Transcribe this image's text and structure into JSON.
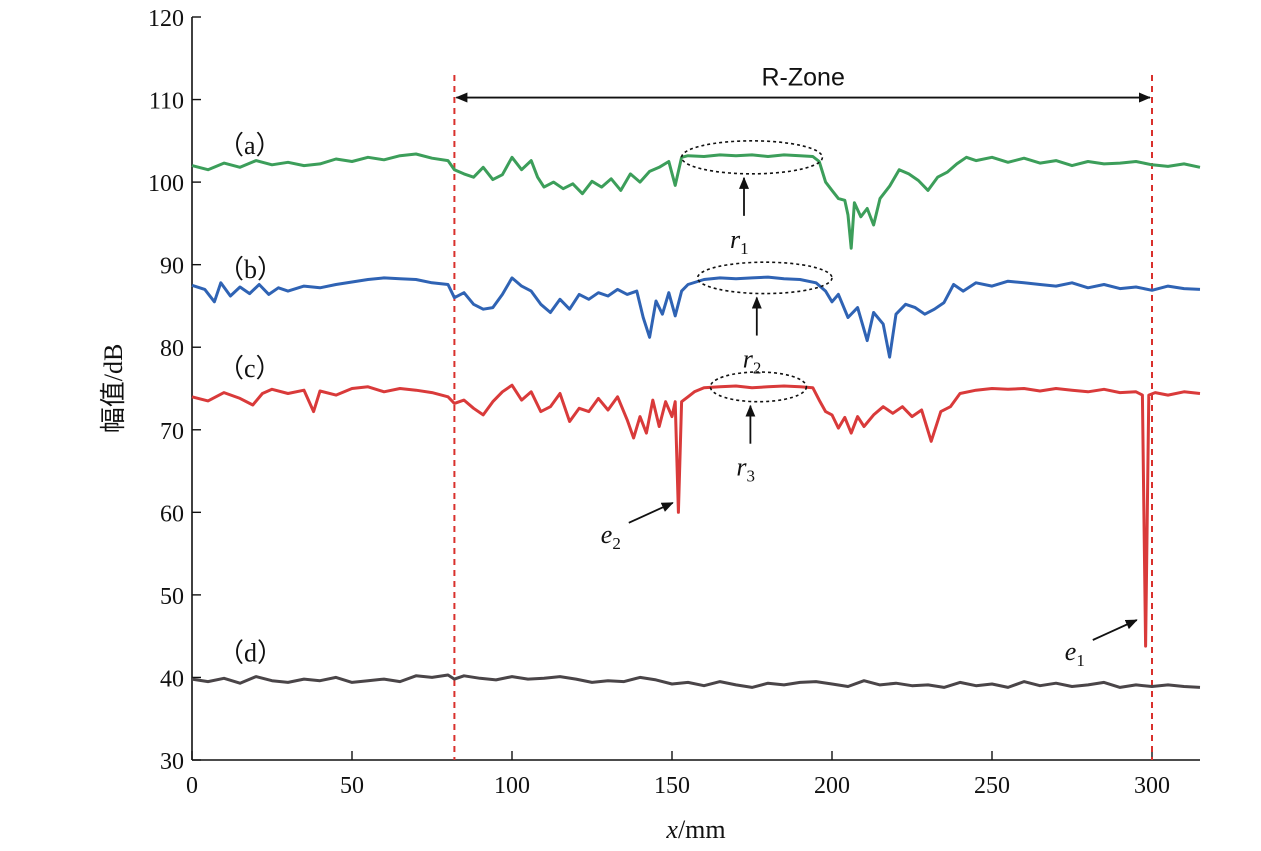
{
  "chart_data": {
    "type": "line",
    "title": "",
    "xlabel_var": "x",
    "xlabel_unit": "/mm",
    "ylabel": "幅值/dB",
    "xlim": [
      0,
      315
    ],
    "ylim": [
      30,
      120
    ],
    "xticks": [
      0,
      50,
      100,
      150,
      200,
      250,
      300
    ],
    "yticks": [
      30,
      40,
      50,
      60,
      70,
      80,
      90,
      100,
      110,
      120
    ],
    "grid": false,
    "series": [
      {
        "panel": "（a）",
        "color": "#3c9e5a",
        "x": [
          0,
          5,
          10,
          15,
          20,
          25,
          30,
          35,
          40,
          45,
          50,
          55,
          60,
          65,
          70,
          75,
          80,
          82,
          85,
          88,
          91,
          94,
          97,
          100,
          103,
          106,
          108,
          110,
          113,
          116,
          119,
          122,
          125,
          128,
          131,
          134,
          137,
          140,
          143,
          146,
          149,
          151,
          153,
          155,
          160,
          165,
          170,
          175,
          180,
          185,
          190,
          194,
          196,
          198,
          200,
          202,
          204,
          205,
          206,
          207,
          209,
          211,
          213,
          215,
          218,
          221,
          224,
          227,
          230,
          233,
          236,
          239,
          242,
          245,
          250,
          255,
          260,
          265,
          270,
          275,
          280,
          285,
          290,
          295,
          300,
          305,
          310,
          315
        ],
        "y": [
          102,
          101.5,
          102.3,
          101.8,
          102.6,
          102.1,
          102.4,
          102,
          102.2,
          102.8,
          102.5,
          103,
          102.7,
          103.2,
          103.4,
          102.9,
          102.6,
          101.5,
          101,
          100.6,
          101.8,
          100.3,
          100.9,
          103,
          101.5,
          102.6,
          100.6,
          99.4,
          100,
          99.2,
          99.8,
          98.6,
          100.1,
          99.4,
          100.4,
          99,
          101,
          100,
          101.3,
          101.8,
          102.5,
          99.6,
          103,
          103.2,
          103.1,
          103.3,
          103.2,
          103.3,
          103.1,
          103.3,
          103.2,
          103.1,
          102.5,
          100,
          99,
          98,
          97.8,
          96,
          92,
          97.5,
          95.8,
          96.8,
          94.8,
          98,
          99.5,
          101.5,
          101,
          100.2,
          99,
          100.6,
          101.2,
          102.2,
          103,
          102.6,
          103,
          102.4,
          102.9,
          102.3,
          102.6,
          102,
          102.5,
          102.2,
          102.3,
          102.5,
          102.1,
          101.9,
          102.2,
          101.8
        ]
      },
      {
        "panel": "（b）",
        "color": "#2f63b4",
        "x": [
          0,
          4,
          7,
          9,
          12,
          15,
          18,
          21,
          24,
          27,
          30,
          35,
          40,
          45,
          50,
          55,
          60,
          65,
          70,
          75,
          80,
          82,
          85,
          88,
          91,
          94,
          97,
          100,
          103,
          106,
          109,
          112,
          115,
          118,
          121,
          124,
          127,
          130,
          133,
          136,
          139,
          141,
          143,
          145,
          147,
          149,
          151,
          153,
          155,
          160,
          165,
          170,
          175,
          180,
          185,
          190,
          195,
          198,
          200,
          202,
          205,
          208,
          211,
          213,
          216,
          218,
          220,
          223,
          226,
          229,
          232,
          235,
          238,
          241,
          245,
          250,
          255,
          260,
          265,
          270,
          275,
          280,
          285,
          290,
          295,
          300,
          305,
          310,
          315
        ],
        "y": [
          87.5,
          87,
          85.5,
          87.8,
          86.2,
          87.3,
          86.5,
          87.6,
          86.4,
          87.2,
          86.8,
          87.4,
          87.2,
          87.6,
          87.9,
          88.2,
          88.4,
          88.3,
          88.2,
          87.8,
          87.6,
          86,
          86.6,
          85.2,
          84.6,
          84.8,
          86.4,
          88.4,
          87.4,
          86.8,
          85.2,
          84.2,
          85.8,
          84.6,
          86.4,
          85.8,
          86.6,
          86.2,
          87,
          86.4,
          86.8,
          83.6,
          81.2,
          85.6,
          84,
          86.6,
          83.8,
          86.8,
          87.6,
          88.2,
          88.4,
          88.3,
          88.4,
          88.5,
          88.3,
          88.2,
          87.8,
          86.8,
          85.5,
          86.4,
          83.6,
          84.8,
          80.8,
          84.2,
          82.8,
          78.8,
          84,
          85.2,
          84.8,
          84,
          84.6,
          85.4,
          87.6,
          86.8,
          87.8,
          87.4,
          88,
          87.8,
          87.6,
          87.4,
          87.8,
          87.2,
          87.6,
          87.1,
          87.3,
          86.9,
          87.4,
          87.1,
          87
        ]
      },
      {
        "panel": "（c）",
        "color": "#d93a3a",
        "x": [
          0,
          5,
          10,
          15,
          19,
          22,
          25,
          30,
          35,
          38,
          40,
          45,
          50,
          55,
          60,
          65,
          70,
          75,
          80,
          82,
          85,
          88,
          91,
          94,
          97,
          100,
          103,
          106,
          109,
          112,
          115,
          118,
          121,
          124,
          127,
          130,
          133,
          136,
          138,
          140,
          142,
          144,
          146,
          148,
          150,
          151,
          152,
          153,
          155,
          157,
          160,
          165,
          170,
          175,
          180,
          185,
          190,
          194,
          196,
          198,
          200,
          202,
          204,
          206,
          208,
          210,
          213,
          216,
          219,
          222,
          225,
          228,
          231,
          234,
          237,
          240,
          245,
          250,
          255,
          260,
          265,
          270,
          275,
          280,
          285,
          290,
          295,
          297,
          298,
          299,
          301,
          305,
          310,
          315
        ],
        "y": [
          74,
          73.5,
          74.5,
          73.8,
          73,
          74.4,
          74.9,
          74.4,
          74.8,
          72.2,
          74.7,
          74.2,
          75,
          75.2,
          74.6,
          75,
          74.8,
          74.5,
          74,
          73.2,
          73.6,
          72.6,
          71.8,
          73.4,
          74.6,
          75.4,
          73.6,
          74.6,
          72.2,
          72.8,
          74.4,
          71,
          72.6,
          72.2,
          73.8,
          72.4,
          74,
          71.2,
          69,
          71.6,
          69.6,
          73.6,
          70.4,
          73.4,
          71.6,
          73.4,
          60,
          73.4,
          74,
          74.6,
          75.1,
          75.2,
          75.3,
          75.1,
          75.2,
          75.3,
          75.2,
          75.1,
          73.6,
          72.2,
          71.8,
          70.2,
          71.5,
          69.6,
          71.6,
          70.4,
          71.8,
          72.8,
          72,
          72.8,
          71.6,
          72.4,
          68.6,
          72.2,
          72.8,
          74.4,
          74.8,
          75,
          74.9,
          75,
          74.7,
          75,
          74.8,
          74.6,
          74.9,
          74.5,
          74.6,
          74.2,
          43.8,
          74.2,
          74.5,
          74.2,
          74.6,
          74.4
        ]
      },
      {
        "panel": "（d）",
        "color": "#4a4548",
        "x": [
          0,
          5,
          10,
          15,
          20,
          25,
          30,
          35,
          40,
          45,
          50,
          55,
          60,
          65,
          70,
          75,
          80,
          82,
          85,
          90,
          95,
          100,
          105,
          110,
          115,
          120,
          125,
          130,
          135,
          140,
          145,
          150,
          155,
          160,
          165,
          170,
          175,
          180,
          185,
          190,
          195,
          200,
          205,
          210,
          215,
          220,
          225,
          230,
          235,
          240,
          245,
          250,
          255,
          260,
          265,
          270,
          275,
          280,
          285,
          290,
          295,
          300,
          305,
          310,
          315
        ],
        "y": [
          39.8,
          39.5,
          39.9,
          39.3,
          40.1,
          39.6,
          39.4,
          39.8,
          39.6,
          40,
          39.4,
          39.6,
          39.8,
          39.5,
          40.2,
          40,
          40.3,
          39.8,
          40.2,
          39.9,
          39.7,
          40.1,
          39.8,
          39.9,
          40.1,
          39.8,
          39.4,
          39.6,
          39.5,
          40,
          39.7,
          39.2,
          39.4,
          39,
          39.5,
          39.1,
          38.8,
          39.3,
          39.1,
          39.4,
          39.5,
          39.2,
          38.9,
          39.6,
          39.1,
          39.3,
          39,
          39.1,
          38.8,
          39.4,
          39,
          39.2,
          38.8,
          39.5,
          39,
          39.3,
          38.9,
          39.1,
          39.4,
          38.8,
          39.1,
          38.9,
          39.1,
          38.9,
          38.8
        ]
      }
    ],
    "r_zone": {
      "label": "R-Zone",
      "x_start": 82,
      "x_end": 300,
      "y": 110
    },
    "ellipses": [
      {
        "label": "r",
        "sub": "1",
        "x_center": 175,
        "x_halfwidth": 22,
        "y_center": 103,
        "y_halfheight": 2
      },
      {
        "label": "r",
        "sub": "2",
        "x_center": 179,
        "x_halfwidth": 21,
        "y_center": 88.4,
        "y_halfheight": 1.9
      },
      {
        "label": "r",
        "sub": "3",
        "x_center": 177,
        "x_halfwidth": 15,
        "y_center": 75.2,
        "y_halfheight": 1.8
      }
    ],
    "annotations": [
      {
        "label": "e",
        "sub": "2",
        "target_x": 151.5,
        "target_y": 61.4
      },
      {
        "label": "e",
        "sub": "1",
        "target_x": 296.5,
        "target_y": 47.2
      }
    ]
  }
}
